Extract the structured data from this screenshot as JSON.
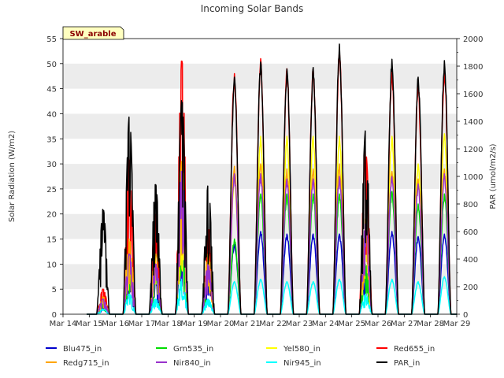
{
  "chart_data": {
    "type": "line",
    "title": "Incoming Solar Bands",
    "annotation": "SW_arable",
    "ylabel_left": "Solar Radiation (W/m2)",
    "ylabel_right": "PAR (umol/m2/s)",
    "ylim_left": [
      0,
      55
    ],
    "ylim_right": [
      0,
      2000
    ],
    "yticks_left": [
      "0",
      "5",
      "10",
      "15",
      "20",
      "25",
      "30",
      "35",
      "40",
      "45",
      "50",
      "55"
    ],
    "yticks_right": [
      "0",
      "200",
      "400",
      "600",
      "800",
      "1000",
      "1200",
      "1400",
      "1600",
      "1800",
      "2000"
    ],
    "xticks": [
      "Mar 14",
      "Mar 15",
      "Mar 16",
      "Mar 17",
      "Mar 18",
      "Mar 19",
      "Mar 20",
      "Mar 21",
      "Mar 22",
      "Mar 23",
      "Mar 24",
      "Mar 25",
      "Mar 26",
      "Mar 27",
      "Mar 28",
      "Mar 29"
    ],
    "xlim_days": [
      14,
      29
    ],
    "grid": "horizontal bands",
    "legend_position": "bottom",
    "series": [
      {
        "name": "Blu475_in",
        "color": "#0000cc",
        "axis": "left",
        "peaks": [
          1.5,
          8.0,
          6.0,
          12.5,
          7.5,
          14.0,
          16.5,
          16.0,
          16.0,
          16.0,
          8.0,
          16.5,
          15.5,
          16.0
        ]
      },
      {
        "name": "Grn535_in",
        "color": "#00dd00",
        "axis": "left",
        "peaks": [
          2.0,
          9.0,
          8.0,
          15.0,
          8.5,
          15.0,
          24.0,
          24.0,
          24.0,
          24.0,
          10.0,
          24.5,
          22.0,
          24.0
        ]
      },
      {
        "name": "Yel580_in",
        "color": "#ffff00",
        "axis": "left",
        "peaks": [
          3.0,
          14.0,
          12.0,
          22.0,
          12.0,
          27.0,
          35.5,
          35.5,
          35.5,
          35.5,
          16.0,
          35.5,
          30.0,
          36.0
        ]
      },
      {
        "name": "Red655_in",
        "color": "#ff0000",
        "axis": "left",
        "peaks": [
          5.0,
          31.0,
          20.0,
          50.5,
          17.0,
          48.0,
          51.0,
          49.0,
          49.0,
          52.5,
          32.5,
          49.0,
          46.0,
          49.0
        ]
      },
      {
        "name": "Redg715_in",
        "color": "#ffa500",
        "axis": "left",
        "peaks": [
          3.5,
          15.0,
          12.0,
          30.5,
          12.0,
          29.5,
          30.0,
          29.0,
          29.0,
          30.0,
          19.0,
          28.5,
          27.0,
          29.0
        ]
      },
      {
        "name": "Nir840_in",
        "color": "#9932cc",
        "axis": "left",
        "peaks": [
          3.0,
          12.0,
          10.0,
          28.5,
          10.0,
          28.0,
          28.0,
          27.0,
          27.0,
          27.5,
          18.0,
          27.5,
          26.0,
          28.0
        ]
      },
      {
        "name": "Nir945_in",
        "color": "#00ffff",
        "axis": "left",
        "peaks": [
          1.0,
          4.0,
          3.0,
          7.0,
          3.0,
          6.5,
          7.0,
          6.5,
          6.5,
          7.0,
          4.0,
          7.0,
          6.5,
          7.5
        ]
      },
      {
        "name": "PAR_in",
        "color": "#000000",
        "axis": "right",
        "peaks": [
          760,
          1430,
          940,
          1550,
          930,
          1720,
          1830,
          1780,
          1790,
          1960,
          1330,
          1850,
          1720,
          1840
        ]
      }
    ],
    "peak_days": [
      15,
      16,
      17,
      18,
      19,
      20,
      21,
      22,
      23,
      24,
      25,
      26,
      27,
      28
    ],
    "noisy_day_index": [
      0,
      1,
      2,
      3,
      4,
      10
    ]
  }
}
